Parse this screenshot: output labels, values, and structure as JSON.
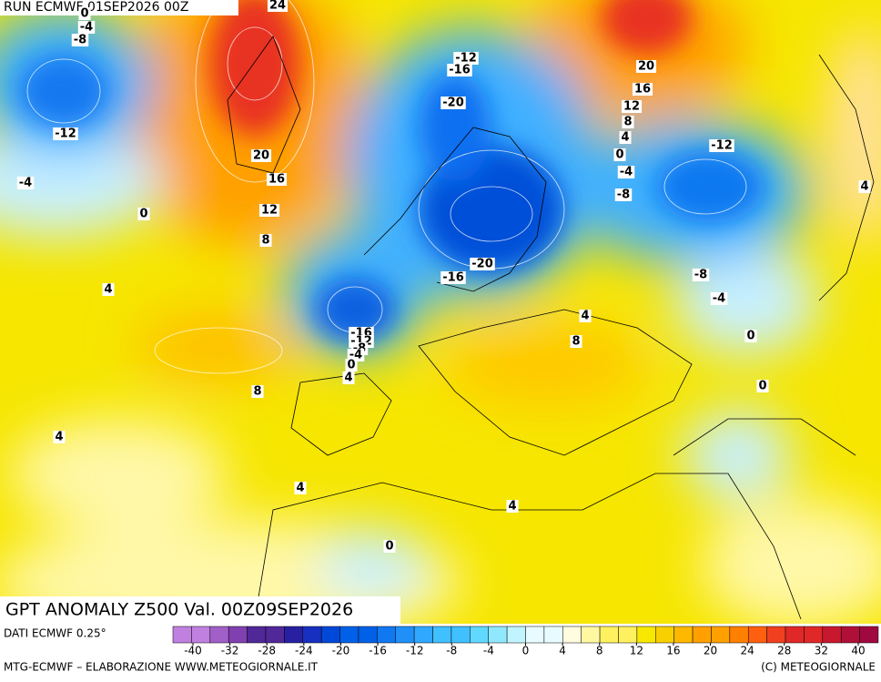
{
  "header": {
    "run": "RUN ECMWF 01SEP2026 00Z"
  },
  "map": {
    "contour_labels": [
      0,
      -4,
      -8,
      24,
      -12,
      -16,
      -20,
      20,
      16,
      12,
      8,
      4,
      0,
      -4,
      -8,
      -12,
      -12,
      -4,
      0,
      20,
      16,
      12,
      8,
      4,
      4,
      -16,
      -20,
      -8,
      -4,
      4,
      8,
      0,
      -16,
      -12,
      -8,
      -4,
      0,
      4,
      0,
      8,
      4,
      4,
      4,
      0
    ]
  },
  "title": "GPT ANOMALY Z500 Val. 00Z09SEP2026",
  "source": "DATI ECMWF 0.25°",
  "colorbar": {
    "ticks": [
      -40,
      -32,
      -28,
      -24,
      -20,
      -16,
      -12,
      -8,
      -4,
      0,
      4,
      8,
      12,
      16,
      20,
      24,
      28,
      32,
      40
    ],
    "colors": [
      "#c080e0",
      "#a060c8",
      "#8040b0",
      "#502898",
      "#2820a0",
      "#1830c0",
      "#0048d8",
      "#0060e8",
      "#1078f0",
      "#2090f8",
      "#30a8ff",
      "#40c0ff",
      "#60d8ff",
      "#90e8ff",
      "#c0f4ff",
      "#e8fcff",
      "#fffce0",
      "#fff8a0",
      "#fff060",
      "#f8e800",
      "#f8d000",
      "#ffb800",
      "#ffa000",
      "#ff8000",
      "#ff6010",
      "#f04020",
      "#e02828",
      "#c81830",
      "#b01038",
      "#a00840"
    ]
  },
  "footer": {
    "left": "MTG-ECMWF – ELABORAZIONE WWW.METEOGIORNALE.IT",
    "right": "(C) METEOGIORNALE"
  }
}
